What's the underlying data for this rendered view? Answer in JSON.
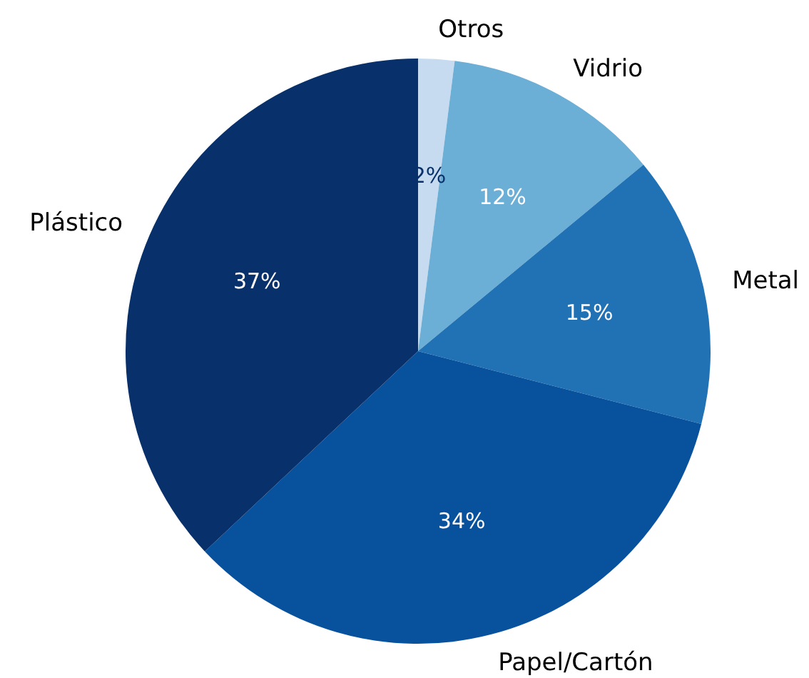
{
  "chart_data": {
    "type": "pie",
    "categories": [
      "Otros",
      "Vidrio",
      "Metal",
      "Papel/Cartón",
      "Plástico"
    ],
    "values": [
      2,
      12,
      15,
      34,
      37
    ],
    "colors": [
      "#c6dbef",
      "#6baed6",
      "#2171b5",
      "#08519c",
      "#08306b"
    ],
    "value_labels": [
      "2%",
      "12%",
      "15%",
      "34%",
      "37%"
    ]
  }
}
